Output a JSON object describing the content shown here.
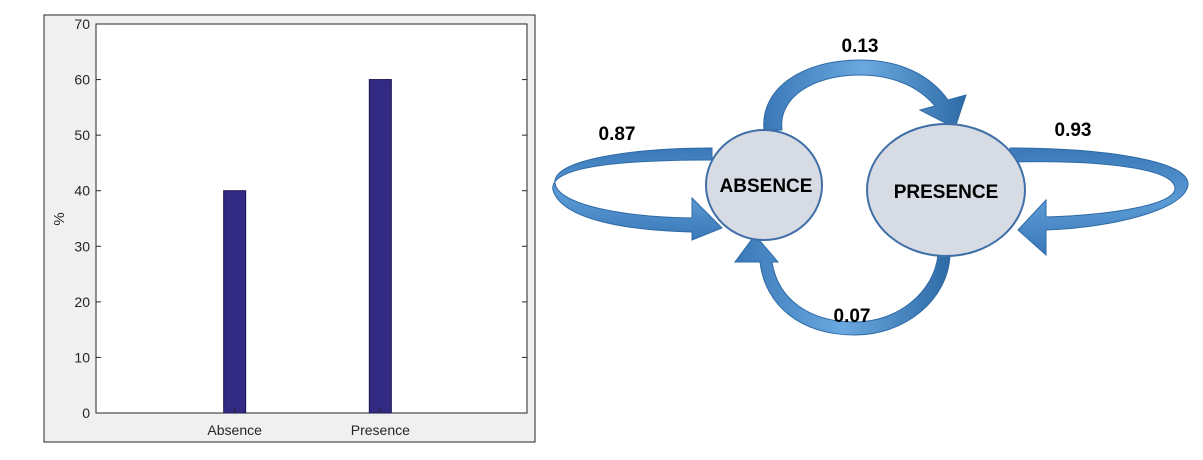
{
  "chart_data": {
    "type": "bar",
    "categories": [
      "Absence",
      "Presence"
    ],
    "values": [
      40,
      60
    ],
    "title": "",
    "xlabel": "",
    "ylabel": "%",
    "ylim": [
      0,
      70
    ],
    "yticks": [
      0,
      10,
      20,
      30,
      40,
      50,
      60,
      70
    ],
    "grid": false,
    "bar_color": "#332a84"
  },
  "diagram": {
    "states": [
      {
        "label": "ABSENCE"
      },
      {
        "label": "PRESENCE"
      }
    ],
    "transitions": {
      "absence_to_absence": "0.87",
      "absence_to_presence": "0.13",
      "presence_to_presence": "0.93",
      "presence_to_absence": "0.07"
    },
    "colors": {
      "node_fill": "#d6dbe4",
      "node_stroke": "#3f6fa6",
      "arrow_fill": "#5b9bd5",
      "arrow_dark": "#2e6aa6"
    }
  }
}
